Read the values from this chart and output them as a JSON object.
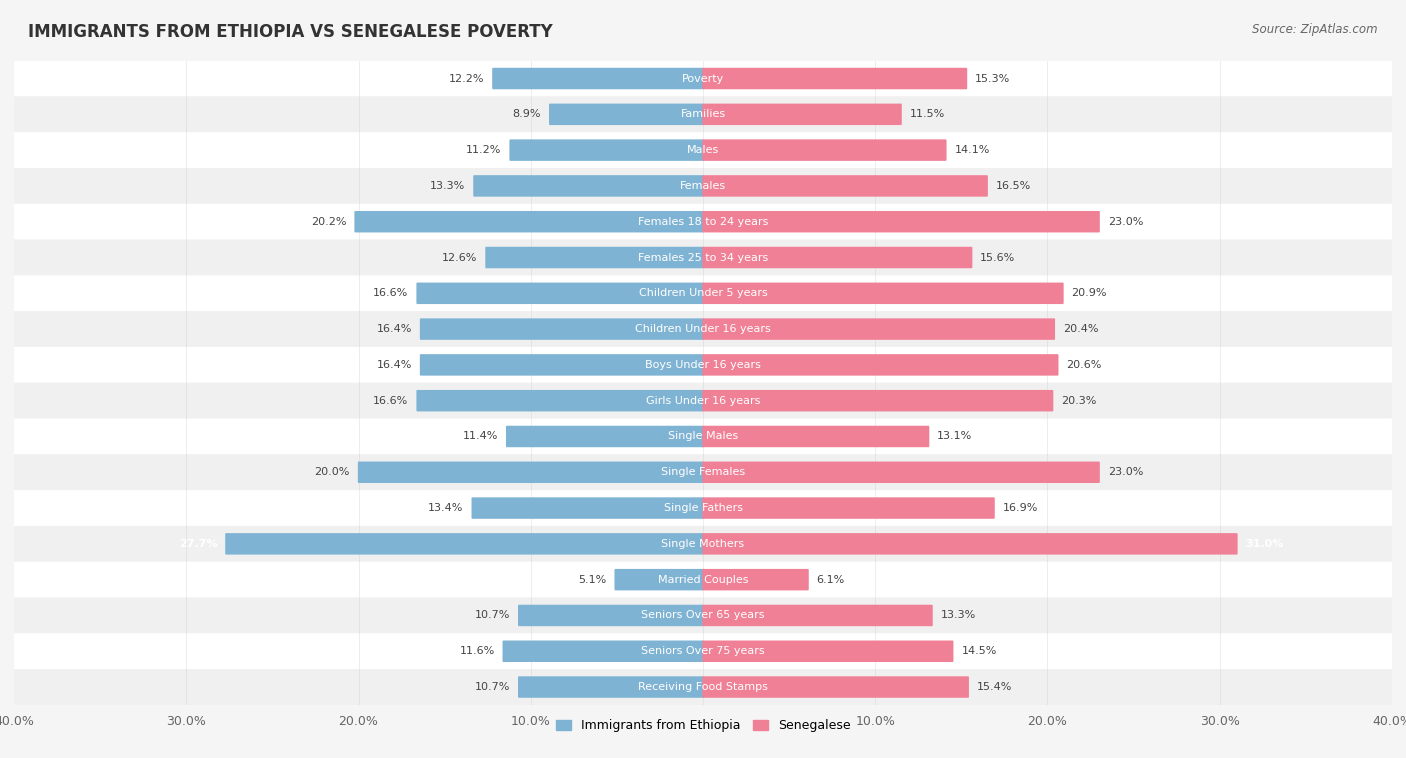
{
  "title": "IMMIGRANTS FROM ETHIOPIA VS SENEGALESE POVERTY",
  "source": "Source: ZipAtlas.com",
  "categories": [
    "Poverty",
    "Families",
    "Males",
    "Females",
    "Females 18 to 24 years",
    "Females 25 to 34 years",
    "Children Under 5 years",
    "Children Under 16 years",
    "Boys Under 16 years",
    "Girls Under 16 years",
    "Single Males",
    "Single Females",
    "Single Fathers",
    "Single Mothers",
    "Married Couples",
    "Seniors Over 65 years",
    "Seniors Over 75 years",
    "Receiving Food Stamps"
  ],
  "ethiopia_values": [
    12.2,
    8.9,
    11.2,
    13.3,
    20.2,
    12.6,
    16.6,
    16.4,
    16.4,
    16.6,
    11.4,
    20.0,
    13.4,
    27.7,
    5.1,
    10.7,
    11.6,
    10.7
  ],
  "senegal_values": [
    15.3,
    11.5,
    14.1,
    16.5,
    23.0,
    15.6,
    20.9,
    20.4,
    20.6,
    20.3,
    13.1,
    23.0,
    16.9,
    31.0,
    6.1,
    13.3,
    14.5,
    15.4
  ],
  "ethiopia_color": "#7fb3d3",
  "senegal_color": "#f08096",
  "ethiopia_label": "Immigrants from Ethiopia",
  "senegal_label": "Senegalese",
  "axis_max": 40.0,
  "row_color_even": "#f0f0f0",
  "row_color_odd": "#ffffff",
  "bar_height": 0.52,
  "title_fontsize": 12,
  "source_fontsize": 8.5,
  "tick_fontsize": 9,
  "label_fontsize": 8,
  "value_fontsize": 8,
  "legend_fontsize": 9
}
